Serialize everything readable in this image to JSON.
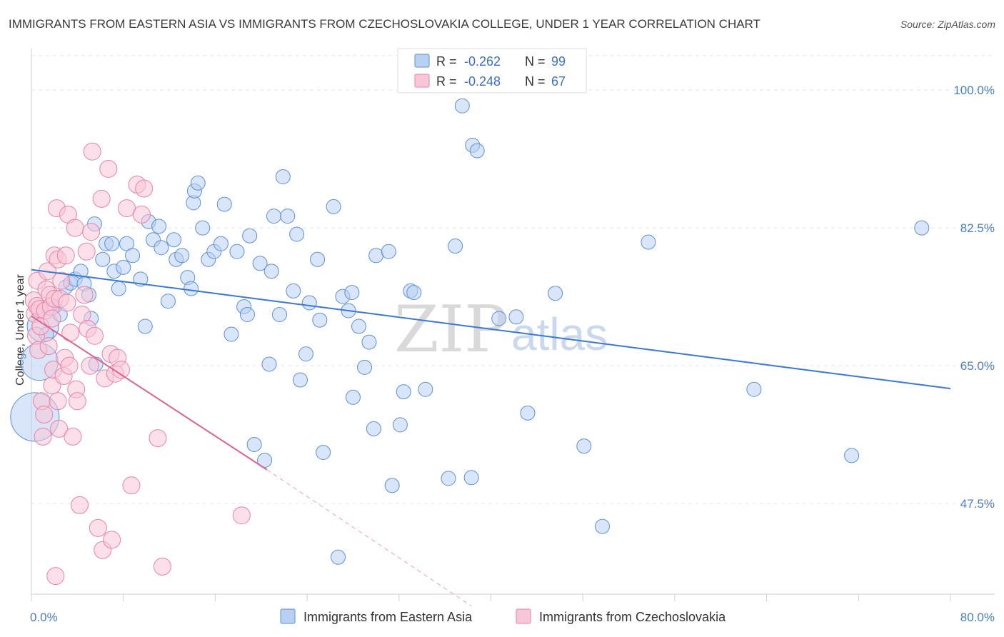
{
  "chart_data": {
    "type": "scatter",
    "title": "IMMIGRANTS FROM EASTERN ASIA VS IMMIGRANTS FROM CZECHOSLOVAKIA COLLEGE, UNDER 1 YEAR CORRELATION CHART",
    "source": "Source: ZipAtlas.com",
    "ylabel": "College, Under 1 year",
    "xlim": [
      0,
      80
    ],
    "ylim": [
      36,
      106
    ],
    "y_ticks": [
      100.0,
      82.5,
      65.0,
      47.5
    ],
    "y_tick_labels": [
      "100.0%",
      "82.5%",
      "65.0%",
      "47.5%"
    ],
    "x_tick_labels": [
      "0.0%",
      "80.0%"
    ],
    "watermark": [
      "ZIP",
      "atlas"
    ],
    "legend": [
      {
        "r_label": "R =",
        "r_value": "-0.262",
        "n_label": "N =",
        "n_value": "99"
      },
      {
        "r_label": "R =",
        "r_value": "-0.248",
        "n_label": "N =",
        "n_value": "67"
      }
    ],
    "series": [
      {
        "name": "Immigrants from Eastern Asia",
        "color": "#8fb3e8",
        "stroke": "#5b8fd6",
        "fill": "#b9d0f2",
        "trend": {
          "x": [
            0,
            80
          ],
          "y": [
            77.2,
            62.1
          ],
          "color": "#3a78d4"
        },
        "points": [
          [
            1.0,
            70.0,
            22
          ],
          [
            0.3,
            58.5,
            34
          ],
          [
            0.7,
            65.5,
            26
          ],
          [
            1.3,
            69.0,
            10
          ],
          [
            2.0,
            72.5,
            10
          ],
          [
            2.5,
            71.5,
            10
          ],
          [
            3.0,
            75.0,
            10
          ],
          [
            3.4,
            75.5,
            10
          ],
          [
            3.8,
            76.0,
            10
          ],
          [
            4.3,
            77.0,
            10
          ],
          [
            4.6,
            75.4,
            10
          ],
          [
            5.0,
            74.0,
            10
          ],
          [
            5.2,
            71.0,
            10
          ],
          [
            5.5,
            83.0,
            10
          ],
          [
            5.6,
            65.2,
            10
          ],
          [
            6.2,
            78.5,
            10
          ],
          [
            6.5,
            80.5,
            10
          ],
          [
            7.0,
            80.5,
            10
          ],
          [
            7.2,
            77.0,
            10
          ],
          [
            7.6,
            74.8,
            10
          ],
          [
            8.0,
            77.5,
            10
          ],
          [
            8.3,
            80.5,
            10
          ],
          [
            8.8,
            79.0,
            10
          ],
          [
            9.5,
            76.0,
            10
          ],
          [
            9.9,
            70.0,
            10
          ],
          [
            10.2,
            83.3,
            10
          ],
          [
            10.6,
            81.0,
            10
          ],
          [
            11.1,
            82.7,
            10
          ],
          [
            11.3,
            80.0,
            10
          ],
          [
            11.9,
            73.2,
            10
          ],
          [
            12.4,
            81.0,
            10
          ],
          [
            12.6,
            78.5,
            10
          ],
          [
            13.1,
            79.0,
            10
          ],
          [
            13.6,
            76.2,
            10
          ],
          [
            13.9,
            74.8,
            10
          ],
          [
            14.1,
            85.7,
            10
          ],
          [
            14.2,
            87.2,
            10
          ],
          [
            14.5,
            88.2,
            10
          ],
          [
            14.9,
            82.5,
            10
          ],
          [
            15.4,
            78.5,
            10
          ],
          [
            15.9,
            79.5,
            10
          ],
          [
            16.5,
            80.5,
            10
          ],
          [
            16.8,
            85.5,
            10
          ],
          [
            17.4,
            69.0,
            10
          ],
          [
            17.9,
            79.5,
            10
          ],
          [
            18.5,
            72.5,
            10
          ],
          [
            18.8,
            71.5,
            10
          ],
          [
            19.0,
            81.5,
            10
          ],
          [
            19.4,
            55.0,
            10
          ],
          [
            19.9,
            78.0,
            10
          ],
          [
            20.3,
            53.0,
            10
          ],
          [
            20.7,
            65.2,
            10
          ],
          [
            20.9,
            77.0,
            10
          ],
          [
            21.1,
            84.0,
            10
          ],
          [
            21.6,
            71.5,
            10
          ],
          [
            21.9,
            89.0,
            10
          ],
          [
            22.3,
            84.0,
            10
          ],
          [
            22.8,
            74.5,
            10
          ],
          [
            23.1,
            81.7,
            10
          ],
          [
            23.4,
            63.2,
            10
          ],
          [
            23.9,
            66.5,
            10
          ],
          [
            24.9,
            78.5,
            10
          ],
          [
            25.1,
            70.8,
            10
          ],
          [
            25.4,
            54.0,
            10
          ],
          [
            26.3,
            85.2,
            10
          ],
          [
            26.7,
            40.7,
            10
          ],
          [
            27.1,
            73.8,
            10
          ],
          [
            27.9,
            74.3,
            10
          ],
          [
            27.6,
            72.0,
            10
          ],
          [
            28.0,
            61.0,
            10
          ],
          [
            28.5,
            70.0,
            10
          ],
          [
            29.0,
            64.8,
            10
          ],
          [
            29.4,
            68.0,
            10
          ],
          [
            29.8,
            57.0,
            10
          ],
          [
            30.0,
            79.0,
            10
          ],
          [
            31.1,
            79.5,
            10
          ],
          [
            31.4,
            49.8,
            10
          ],
          [
            32.1,
            57.5,
            10
          ],
          [
            32.4,
            61.7,
            10
          ],
          [
            33.0,
            74.5,
            10
          ],
          [
            33.3,
            74.3,
            10
          ],
          [
            34.3,
            62.0,
            10
          ],
          [
            36.3,
            50.7,
            10
          ],
          [
            36.9,
            80.2,
            10
          ],
          [
            37.5,
            98.0,
            10
          ],
          [
            38.4,
            93.0,
            10
          ],
          [
            38.8,
            92.3,
            10
          ],
          [
            40.7,
            71.0,
            10
          ],
          [
            42.2,
            71.2,
            10
          ],
          [
            43.2,
            59.0,
            10
          ],
          [
            45.6,
            74.2,
            10
          ],
          [
            48.1,
            54.8,
            10
          ],
          [
            49.7,
            44.6,
            10
          ],
          [
            53.7,
            80.7,
            10
          ],
          [
            62.9,
            62.0,
            10
          ],
          [
            71.4,
            53.6,
            10
          ],
          [
            77.5,
            82.5,
            10
          ],
          [
            38.3,
            50.8,
            10
          ],
          [
            24.2,
            73.0,
            10
          ]
        ]
      },
      {
        "name": "Immigrants from Czechoslovakia",
        "color": "#f2a7bf",
        "stroke": "#e882a4",
        "fill": "#f8c7d7",
        "trend": {
          "x": [
            0,
            20.5
          ],
          "y": [
            71.3,
            51.8
          ],
          "color": "#e0608e",
          "dash": {
            "x": [
              20.5,
              38.3
            ],
            "y": [
              51.8,
              34.5
            ]
          }
        },
        "points": [
          [
            0.2,
            73.3,
            12
          ],
          [
            0.3,
            71.6,
            12
          ],
          [
            0.4,
            68.8,
            12
          ],
          [
            0.5,
            72.6,
            12
          ],
          [
            0.5,
            75.8,
            12
          ],
          [
            0.6,
            67.0,
            12
          ],
          [
            0.7,
            72.2,
            12
          ],
          [
            0.8,
            70.0,
            12
          ],
          [
            0.9,
            60.5,
            12
          ],
          [
            1.0,
            56.0,
            12
          ],
          [
            1.1,
            58.8,
            12
          ],
          [
            1.2,
            72.0,
            12
          ],
          [
            1.3,
            74.7,
            12
          ],
          [
            1.4,
            77.0,
            12
          ],
          [
            1.5,
            67.5,
            12
          ],
          [
            1.6,
            74.0,
            12
          ],
          [
            1.7,
            72.5,
            12
          ],
          [
            1.8,
            71.0,
            12
          ],
          [
            1.8,
            62.5,
            12
          ],
          [
            1.9,
            64.5,
            12
          ],
          [
            2.0,
            73.5,
            12
          ],
          [
            2.0,
            79.0,
            12
          ],
          [
            2.1,
            38.3,
            12
          ],
          [
            2.2,
            85.0,
            12
          ],
          [
            2.3,
            78.5,
            12
          ],
          [
            2.3,
            60.5,
            12
          ],
          [
            2.4,
            57.0,
            12
          ],
          [
            2.5,
            73.5,
            12
          ],
          [
            2.6,
            75.8,
            12
          ],
          [
            2.8,
            63.7,
            12
          ],
          [
            2.9,
            66.0,
            12
          ],
          [
            3.0,
            79.0,
            12
          ],
          [
            3.1,
            73.0,
            12
          ],
          [
            3.2,
            84.2,
            12
          ],
          [
            3.3,
            65.0,
            12
          ],
          [
            3.4,
            69.2,
            12
          ],
          [
            3.6,
            56.0,
            12
          ],
          [
            3.8,
            82.5,
            12
          ],
          [
            3.9,
            62.0,
            12
          ],
          [
            4.0,
            60.5,
            12
          ],
          [
            4.2,
            47.3,
            12
          ],
          [
            4.4,
            71.5,
            12
          ],
          [
            4.6,
            74.0,
            12
          ],
          [
            4.8,
            79.5,
            12
          ],
          [
            4.9,
            69.7,
            12
          ],
          [
            5.1,
            65.0,
            12
          ],
          [
            5.2,
            82.0,
            12
          ],
          [
            5.3,
            92.2,
            12
          ],
          [
            5.5,
            68.8,
            12
          ],
          [
            5.8,
            44.4,
            12
          ],
          [
            6.1,
            86.2,
            12
          ],
          [
            6.2,
            41.6,
            12
          ],
          [
            6.4,
            63.4,
            12
          ],
          [
            6.7,
            90.0,
            12
          ],
          [
            6.9,
            66.5,
            12
          ],
          [
            7.0,
            42.9,
            12
          ],
          [
            7.3,
            64.0,
            12
          ],
          [
            7.5,
            66.0,
            12
          ],
          [
            7.8,
            64.5,
            12
          ],
          [
            8.3,
            85.0,
            12
          ],
          [
            8.7,
            49.8,
            12
          ],
          [
            9.2,
            88.0,
            12
          ],
          [
            9.6,
            84.2,
            12
          ],
          [
            9.8,
            87.5,
            12
          ],
          [
            11.0,
            55.8,
            12
          ],
          [
            11.4,
            39.5,
            12
          ],
          [
            18.3,
            46.0,
            12
          ]
        ]
      }
    ]
  }
}
